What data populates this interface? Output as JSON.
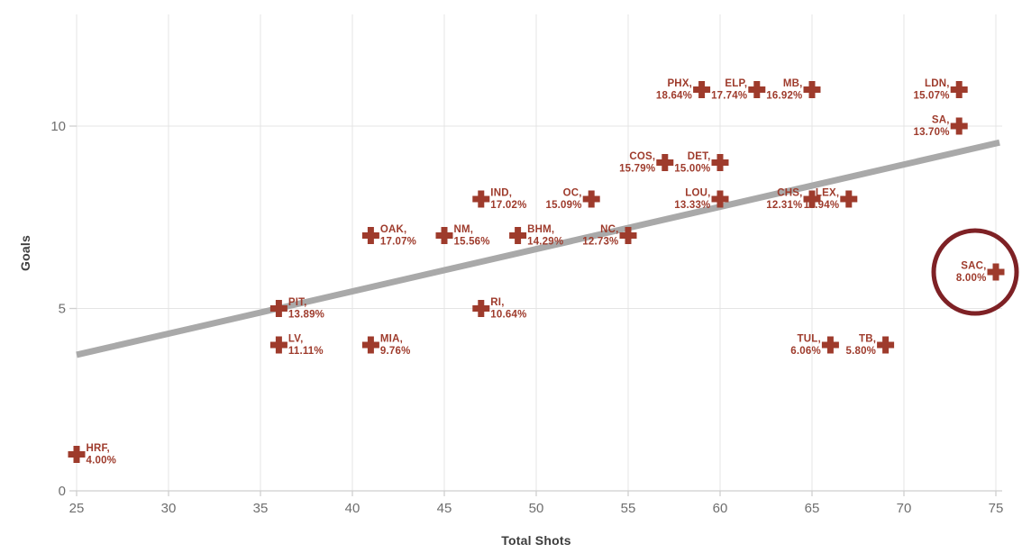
{
  "chart_data": {
    "type": "scatter",
    "xlabel": "Total Shots",
    "ylabel": "Goals",
    "x_ticks": [
      25,
      30,
      35,
      40,
      45,
      50,
      55,
      60,
      65,
      70,
      75
    ],
    "y_ticks": [
      0,
      5,
      10
    ],
    "xlim": [
      25,
      75.4
    ],
    "ylim": [
      0,
      13.1
    ],
    "grid": "on",
    "marker": "plus",
    "colors": {
      "marker": "#9e3b2c",
      "label": "#9e3b2c",
      "trend": "#a9a9a9",
      "grid": "#e4e4e4",
      "axis": "#cfcfcf",
      "tick_text": "#6e6e6e",
      "axis_title_text": "#3d3d3d",
      "annotation": "#7e2125"
    },
    "trendline": {
      "x1": 25,
      "y1": 3.73,
      "x2": 75.2,
      "y2": 9.55
    },
    "points": [
      {
        "team": "HRF",
        "pct": "4.00%",
        "shots": 25,
        "goals": 1,
        "label_side": "right"
      },
      {
        "team": "PIT",
        "pct": "13.89%",
        "shots": 36,
        "goals": 5,
        "label_side": "right"
      },
      {
        "team": "LV",
        "pct": "11.11%",
        "shots": 36,
        "goals": 4,
        "label_side": "right"
      },
      {
        "team": "MIA",
        "pct": "9.76%",
        "shots": 41,
        "goals": 4,
        "label_side": "right"
      },
      {
        "team": "OAK",
        "pct": "17.07%",
        "shots": 41,
        "goals": 7,
        "label_side": "right"
      },
      {
        "team": "NM",
        "pct": "15.56%",
        "shots": 45,
        "goals": 7,
        "label_side": "right"
      },
      {
        "team": "RI",
        "pct": "10.64%",
        "shots": 47,
        "goals": 5,
        "label_side": "right"
      },
      {
        "team": "IND",
        "pct": "17.02%",
        "shots": 47,
        "goals": 8,
        "label_side": "right"
      },
      {
        "team": "BHM",
        "pct": "14.29%",
        "shots": 49,
        "goals": 7,
        "label_side": "right"
      },
      {
        "team": "OC",
        "pct": "15.09%",
        "shots": 53,
        "goals": 8,
        "label_side": "left"
      },
      {
        "team": "NC",
        "pct": "12.73%",
        "shots": 55,
        "goals": 7,
        "label_side": "left"
      },
      {
        "team": "COS",
        "pct": "15.79%",
        "shots": 57,
        "goals": 9,
        "label_side": "left"
      },
      {
        "team": "PHX",
        "pct": "18.64%",
        "shots": 59,
        "goals": 11,
        "label_side": "left"
      },
      {
        "team": "DET",
        "pct": "15.00%",
        "shots": 60,
        "goals": 9,
        "label_side": "left"
      },
      {
        "team": "LOU",
        "pct": "13.33%",
        "shots": 60,
        "goals": 8,
        "label_side": "left"
      },
      {
        "team": "ELP",
        "pct": "17.74%",
        "shots": 62,
        "goals": 11,
        "label_side": "left"
      },
      {
        "team": "MB",
        "pct": "16.92%",
        "shots": 65,
        "goals": 11,
        "label_side": "left"
      },
      {
        "team": "CHS",
        "pct": "12.31%",
        "shots": 65,
        "goals": 8,
        "label_side": "left"
      },
      {
        "team": "TUL",
        "pct": "6.06%",
        "shots": 66,
        "goals": 4,
        "label_side": "left"
      },
      {
        "team": "LEX",
        "pct": "11.94%",
        "shots": 67,
        "goals": 8,
        "label_side": "left"
      },
      {
        "team": "TB",
        "pct": "5.80%",
        "shots": 69,
        "goals": 4,
        "label_side": "left"
      },
      {
        "team": "LDN",
        "pct": "15.07%",
        "shots": 73,
        "goals": 11,
        "label_side": "left"
      },
      {
        "team": "SA",
        "pct": "13.70%",
        "shots": 73,
        "goals": 10,
        "label_side": "left"
      },
      {
        "team": "SAC",
        "pct": "8.00%",
        "shots": 75,
        "goals": 6,
        "label_side": "left"
      }
    ],
    "annotation": {
      "type": "circle",
      "team": "SAC",
      "stroke_width": 5
    }
  }
}
